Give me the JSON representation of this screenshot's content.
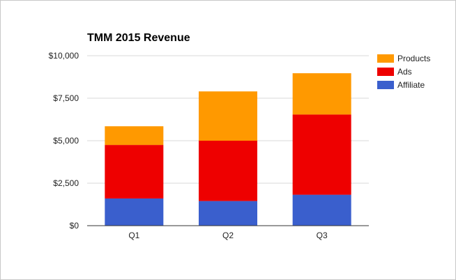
{
  "chart_data": {
    "type": "bar",
    "stacked": true,
    "title": "TMM 2015 Revenue",
    "xlabel": "",
    "ylabel": "",
    "categories": [
      "Q1",
      "Q2",
      "Q3"
    ],
    "series": [
      {
        "name": "Affiliate",
        "color": "#3a5fcd",
        "values": [
          1600,
          1450,
          1820
        ]
      },
      {
        "name": "Ads",
        "color": "#ee0000",
        "values": [
          3150,
          3550,
          4720
        ]
      },
      {
        "name": "Products",
        "color": "#ff9900",
        "values": [
          1100,
          2900,
          2430
        ]
      }
    ],
    "ylim": [
      0,
      10000
    ],
    "yticks": [
      0,
      2500,
      5000,
      7500,
      10000
    ],
    "ytick_labels": [
      "$0",
      "$2,500",
      "$5,000",
      "$7,500",
      "$10,000"
    ],
    "grid": true,
    "legend_position": "right"
  }
}
